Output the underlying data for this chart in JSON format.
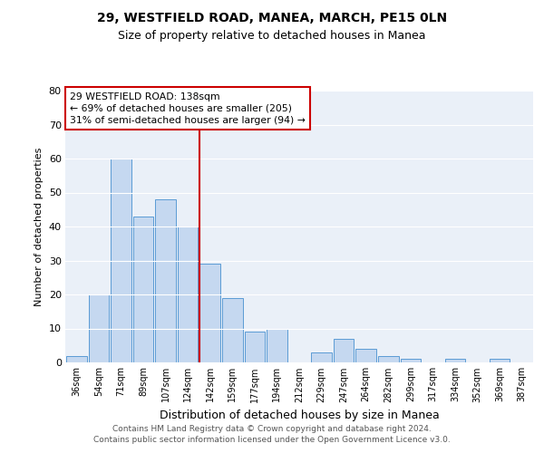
{
  "title": "29, WESTFIELD ROAD, MANEA, MARCH, PE15 0LN",
  "subtitle": "Size of property relative to detached houses in Manea",
  "xlabel": "Distribution of detached houses by size in Manea",
  "ylabel": "Number of detached properties",
  "bin_labels": [
    "36sqm",
    "54sqm",
    "71sqm",
    "89sqm",
    "107sqm",
    "124sqm",
    "142sqm",
    "159sqm",
    "177sqm",
    "194sqm",
    "212sqm",
    "229sqm",
    "247sqm",
    "264sqm",
    "282sqm",
    "299sqm",
    "317sqm",
    "334sqm",
    "352sqm",
    "369sqm",
    "387sqm"
  ],
  "bar_values": [
    2,
    20,
    60,
    43,
    48,
    40,
    29,
    19,
    9,
    10,
    0,
    3,
    7,
    4,
    2,
    1,
    0,
    1,
    0,
    1,
    0
  ],
  "bar_color": "#c5d8f0",
  "bar_edgecolor": "#5b9bd5",
  "vline_x_index": 6,
  "vline_color": "#cc0000",
  "annotation_lines": [
    "29 WESTFIELD ROAD: 138sqm",
    "← 69% of detached houses are smaller (205)",
    "31% of semi-detached houses are larger (94) →"
  ],
  "annotation_box_edgecolor": "#cc0000",
  "footer_lines": [
    "Contains HM Land Registry data © Crown copyright and database right 2024.",
    "Contains public sector information licensed under the Open Government Licence v3.0."
  ],
  "ylim": [
    0,
    80
  ],
  "yticks": [
    0,
    10,
    20,
    30,
    40,
    50,
    60,
    70,
    80
  ],
  "plot_bg_color": "#eaf0f8",
  "grid_color": "#ffffff"
}
